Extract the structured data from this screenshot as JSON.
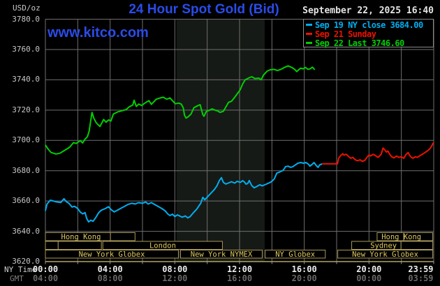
{
  "header": {
    "unit_label": "USD/oz",
    "title": "24 Hour Spot Gold (Bid)",
    "datetime": "September 22, 2025 16:40",
    "watermark": "www.kitco.com"
  },
  "legend": {
    "items": [
      {
        "label": "Sep 19 NY close 3684.00",
        "color": "#00aeef"
      },
      {
        "label": "Sep 21 Sunday",
        "color": "#ee1100"
      },
      {
        "label": "Sep 22 Last 3746.60",
        "color": "#00d000"
      }
    ]
  },
  "axes": {
    "y_tick_labels": [
      "3780.0",
      "3760.0",
      "3740.0",
      "3720.0",
      "3700.0",
      "3680.0",
      "3660.0",
      "3640.0",
      "3620.0"
    ],
    "x_rows": [
      {
        "row_label": "NY Time",
        "color": "#d0d0d0",
        "tick_color": "#ededed",
        "ticks": [
          {
            "text": "00:00",
            "hour": 0
          },
          {
            "text": "04:00",
            "hour": 4
          },
          {
            "text": "08:00",
            "hour": 8
          },
          {
            "text": "12:00",
            "hour": 12
          },
          {
            "text": "16:00",
            "hour": 16
          },
          {
            "text": "20:00",
            "hour": 20
          },
          {
            "text": "23:59",
            "hour": 23.2
          }
        ]
      },
      {
        "row_label": "GMT",
        "color": "#808080",
        "tick_color": "#686868",
        "ticks": [
          {
            "text": "04:00",
            "hour": 0
          },
          {
            "text": "08:00",
            "hour": 4
          },
          {
            "text": "12:00",
            "hour": 8
          },
          {
            "text": "16:00",
            "hour": 12
          },
          {
            "text": "20:00",
            "hour": 16
          },
          {
            "text": "00:00",
            "hour": 20
          },
          {
            "text": "03:59",
            "hour": 23.2
          }
        ]
      }
    ]
  },
  "sessions": {
    "box_border_color": "#a89858",
    "label_color": "#dcc862",
    "rows": [
      {
        "boxes": [
          [
            0,
            4.02
          ],
          [
            4.02,
            5.54
          ],
          [
            20.5,
            22.15
          ],
          [
            22.15,
            23.94
          ]
        ],
        "labels": [
          {
            "text": "Hong Kong",
            "center_hour": 2.2
          },
          {
            "text": "Hong Kong",
            "center_hour": 22.0
          }
        ]
      },
      {
        "boxes": [
          [
            0,
            0.79
          ],
          [
            0.79,
            3.46
          ],
          [
            3.55,
            10.94
          ],
          [
            18.93,
            21.98
          ],
          [
            21.98,
            23.94
          ]
        ],
        "labels": [
          {
            "text": "London",
            "center_hour": 7.25
          },
          {
            "text": "Sydney",
            "center_hour": 20.9
          }
        ]
      },
      {
        "boxes": [
          [
            0,
            8.22
          ],
          [
            8.35,
            13.4
          ],
          [
            13.58,
            17.3
          ],
          [
            18.07,
            23.94
          ]
        ],
        "labels": [
          {
            "text": "New York Globex",
            "center_hour": 4.1
          },
          {
            "text": "New York NYMEX",
            "center_hour": 10.88
          },
          {
            "text": "NY Globex",
            "center_hour": 15.44
          },
          {
            "text": "New York Globex",
            "center_hour": 21.0
          }
        ]
      }
    ]
  },
  "chart_data": {
    "type": "line",
    "title": "24 Hour Spot Gold (Bid)",
    "xlabel": "NY Time (hours 00:00-23:59)",
    "ylabel": "USD/oz",
    "ylim": [
      3620,
      3780
    ],
    "ytick_step": 20,
    "xlim_hours": [
      0,
      24
    ],
    "grid": true,
    "legend_position": "top-right",
    "background_color": "#000000",
    "gridline_color": "#6f6f6f",
    "bottom_axis_color": "#b0a468",
    "nymex_shaded_band_hours": [
      8.1,
      13.55
    ],
    "shaded_band_color": "#161a16",
    "series": [
      {
        "name": "Sep 19 NY close 3684.00",
        "color": "#00aeef",
        "close": 3684.0,
        "points": [
          [
            0.0,
            3653.5
          ],
          [
            0.1,
            3658
          ],
          [
            0.3,
            3660.5
          ],
          [
            0.65,
            3659.5
          ],
          [
            0.95,
            3659
          ],
          [
            1.15,
            3661.5
          ],
          [
            1.3,
            3659.5
          ],
          [
            1.45,
            3658.5
          ],
          [
            1.65,
            3656
          ],
          [
            1.8,
            3656.5
          ],
          [
            2.0,
            3655
          ],
          [
            2.15,
            3652.8
          ],
          [
            2.3,
            3651.5
          ],
          [
            2.45,
            3652.3
          ],
          [
            2.55,
            3648.5
          ],
          [
            2.67,
            3646.2
          ],
          [
            2.8,
            3647.3
          ],
          [
            2.95,
            3646.6
          ],
          [
            3.1,
            3648.8
          ],
          [
            3.3,
            3652.3
          ],
          [
            3.45,
            3653.9
          ],
          [
            3.7,
            3655
          ],
          [
            3.9,
            3656.2
          ],
          [
            4.05,
            3654.4
          ],
          [
            4.25,
            3652.8
          ],
          [
            4.45,
            3653.9
          ],
          [
            4.7,
            3655.4
          ],
          [
            4.9,
            3656.5
          ],
          [
            5.1,
            3657.7
          ],
          [
            5.35,
            3658.5
          ],
          [
            5.55,
            3658
          ],
          [
            5.75,
            3658.9
          ],
          [
            6.0,
            3658.5
          ],
          [
            6.2,
            3659.3
          ],
          [
            6.35,
            3658
          ],
          [
            6.55,
            3658.9
          ],
          [
            6.8,
            3657.4
          ],
          [
            7.0,
            3656.2
          ],
          [
            7.2,
            3655
          ],
          [
            7.4,
            3653.5
          ],
          [
            7.55,
            3651.6
          ],
          [
            7.7,
            3650.4
          ],
          [
            7.85,
            3651.3
          ],
          [
            8.0,
            3649.7
          ],
          [
            8.15,
            3650.8
          ],
          [
            8.3,
            3650.1
          ],
          [
            8.45,
            3649.3
          ],
          [
            8.65,
            3650.1
          ],
          [
            8.8,
            3648.8
          ],
          [
            8.95,
            3649.7
          ],
          [
            9.15,
            3652.3
          ],
          [
            9.35,
            3654.6
          ],
          [
            9.6,
            3658.5
          ],
          [
            9.73,
            3662.4
          ],
          [
            9.85,
            3660.8
          ],
          [
            10.05,
            3663.1
          ],
          [
            10.25,
            3665.4
          ],
          [
            10.45,
            3667.7
          ],
          [
            10.6,
            3670
          ],
          [
            10.75,
            3673.4
          ],
          [
            10.88,
            3675.4
          ],
          [
            11.0,
            3672.3
          ],
          [
            11.15,
            3671.2
          ],
          [
            11.3,
            3671.8
          ],
          [
            11.5,
            3672.7
          ],
          [
            11.7,
            3671.8
          ],
          [
            11.85,
            3673
          ],
          [
            12.05,
            3672.3
          ],
          [
            12.2,
            3673.4
          ],
          [
            12.3,
            3672.6
          ],
          [
            12.4,
            3671.1
          ],
          [
            12.5,
            3671.5
          ],
          [
            12.6,
            3673.5
          ],
          [
            12.75,
            3670.2
          ],
          [
            12.9,
            3668.7
          ],
          [
            13.05,
            3669.5
          ],
          [
            13.25,
            3670.7
          ],
          [
            13.4,
            3670
          ],
          [
            13.65,
            3671.1
          ],
          [
            13.9,
            3672.3
          ],
          [
            14.0,
            3673
          ],
          [
            14.15,
            3674.6
          ],
          [
            14.3,
            3678.4
          ],
          [
            14.5,
            3679.2
          ],
          [
            14.7,
            3680.3
          ],
          [
            14.85,
            3682.7
          ],
          [
            15.0,
            3683
          ],
          [
            15.15,
            3682.2
          ],
          [
            15.3,
            3682.7
          ],
          [
            15.45,
            3683.8
          ],
          [
            15.6,
            3684.9
          ],
          [
            15.8,
            3685.4
          ],
          [
            15.95,
            3684.9
          ],
          [
            16.1,
            3685.4
          ],
          [
            16.25,
            3684.3
          ],
          [
            16.35,
            3683
          ],
          [
            16.5,
            3684.3
          ],
          [
            16.6,
            3685.4
          ],
          [
            16.75,
            3683.3
          ],
          [
            16.85,
            3682.2
          ],
          [
            16.95,
            3683.8
          ],
          [
            17.1,
            3684.5
          ]
        ]
      },
      {
        "name": "Sep 21 Sunday",
        "color": "#ee1100",
        "points": [
          [
            17.1,
            3684.5
          ],
          [
            18.05,
            3684.5
          ],
          [
            18.12,
            3688.2
          ],
          [
            18.25,
            3690
          ],
          [
            18.38,
            3691.2
          ],
          [
            18.45,
            3690.3
          ],
          [
            18.6,
            3690.8
          ],
          [
            18.75,
            3689.2
          ],
          [
            18.88,
            3688.2
          ],
          [
            19.0,
            3688.8
          ],
          [
            19.15,
            3687.2
          ],
          [
            19.3,
            3686.6
          ],
          [
            19.45,
            3687.2
          ],
          [
            19.6,
            3686.1
          ],
          [
            19.75,
            3686.9
          ],
          [
            19.9,
            3689.2
          ],
          [
            20.0,
            3690.3
          ],
          [
            20.1,
            3689.7
          ],
          [
            20.25,
            3690.8
          ],
          [
            20.4,
            3690
          ],
          [
            20.55,
            3688.8
          ],
          [
            20.65,
            3689.7
          ],
          [
            20.75,
            3690.8
          ],
          [
            20.87,
            3694.9
          ],
          [
            20.97,
            3693.8
          ],
          [
            21.08,
            3692.3
          ],
          [
            21.17,
            3693
          ],
          [
            21.28,
            3690.8
          ],
          [
            21.4,
            3689.2
          ],
          [
            21.55,
            3688.4
          ],
          [
            21.7,
            3689.7
          ],
          [
            21.85,
            3688.8
          ],
          [
            22.0,
            3689.2
          ],
          [
            22.15,
            3688.2
          ],
          [
            22.3,
            3690.8
          ],
          [
            22.42,
            3691.9
          ],
          [
            22.52,
            3690
          ],
          [
            22.62,
            3688.8
          ],
          [
            22.72,
            3688.2
          ],
          [
            22.87,
            3689.2
          ],
          [
            23.0,
            3688.8
          ],
          [
            23.15,
            3690
          ],
          [
            23.3,
            3690.8
          ],
          [
            23.45,
            3691.9
          ],
          [
            23.6,
            3693
          ],
          [
            23.75,
            3694.3
          ],
          [
            23.87,
            3696.1
          ],
          [
            23.95,
            3698
          ],
          [
            24.0,
            3698.4
          ]
        ]
      },
      {
        "name": "Sep 22 Last 3746.60",
        "color": "#00d000",
        "last": 3746.6,
        "points": [
          [
            0.0,
            3697
          ],
          [
            0.15,
            3694.5
          ],
          [
            0.35,
            3692
          ],
          [
            0.65,
            3691
          ],
          [
            0.9,
            3691.5
          ],
          [
            1.2,
            3693.5
          ],
          [
            1.5,
            3695.5
          ],
          [
            1.73,
            3698.5
          ],
          [
            1.9,
            3698
          ],
          [
            2.16,
            3699.8
          ],
          [
            2.3,
            3698.3
          ],
          [
            2.45,
            3700.8
          ],
          [
            2.6,
            3702.5
          ],
          [
            2.7,
            3706
          ],
          [
            2.88,
            3718.5
          ],
          [
            3.0,
            3714.5
          ],
          [
            3.15,
            3711.5
          ],
          [
            3.37,
            3709.2
          ],
          [
            3.6,
            3713.8
          ],
          [
            3.75,
            3712
          ],
          [
            3.9,
            3713.5
          ],
          [
            4.05,
            3712.8
          ],
          [
            4.2,
            3717.4
          ],
          [
            4.45,
            3718.7
          ],
          [
            4.7,
            3719.5
          ],
          [
            5.0,
            3720.4
          ],
          [
            5.2,
            3722.3
          ],
          [
            5.4,
            3723.3
          ],
          [
            5.48,
            3726.5
          ],
          [
            5.62,
            3722.4
          ],
          [
            5.77,
            3724
          ],
          [
            5.95,
            3723
          ],
          [
            6.2,
            3725
          ],
          [
            6.4,
            3726.2
          ],
          [
            6.55,
            3723.8
          ],
          [
            6.7,
            3725.5
          ],
          [
            6.85,
            3727.2
          ],
          [
            7.1,
            3728
          ],
          [
            7.28,
            3728.5
          ],
          [
            7.5,
            3727.2
          ],
          [
            7.7,
            3728
          ],
          [
            7.85,
            3726.2
          ],
          [
            8.03,
            3724.2
          ],
          [
            8.25,
            3724.6
          ],
          [
            8.4,
            3723.9
          ],
          [
            8.52,
            3721.5
          ],
          [
            8.6,
            3716.5
          ],
          [
            8.7,
            3714.7
          ],
          [
            8.85,
            3715.8
          ],
          [
            9.0,
            3717.4
          ],
          [
            9.18,
            3721.6
          ],
          [
            9.4,
            3722.8
          ],
          [
            9.56,
            3723.6
          ],
          [
            9.73,
            3717
          ],
          [
            9.8,
            3715.9
          ],
          [
            9.95,
            3719.2
          ],
          [
            10.15,
            3719.9
          ],
          [
            10.3,
            3720.8
          ],
          [
            10.5,
            3719.9
          ],
          [
            10.65,
            3719.4
          ],
          [
            10.8,
            3718.5
          ],
          [
            11.0,
            3719.2
          ],
          [
            11.15,
            3722
          ],
          [
            11.32,
            3725.1
          ],
          [
            11.5,
            3725.8
          ],
          [
            11.68,
            3728.2
          ],
          [
            11.86,
            3730.8
          ],
          [
            12.04,
            3733.4
          ],
          [
            12.2,
            3737.4
          ],
          [
            12.35,
            3740
          ],
          [
            12.55,
            3741.1
          ],
          [
            12.75,
            3742
          ],
          [
            12.95,
            3740.8
          ],
          [
            13.2,
            3741.1
          ],
          [
            13.33,
            3740
          ],
          [
            13.48,
            3743.1
          ],
          [
            13.7,
            3745.7
          ],
          [
            13.9,
            3746.6
          ],
          [
            14.13,
            3746.9
          ],
          [
            14.34,
            3746.1
          ],
          [
            14.56,
            3746.9
          ],
          [
            14.78,
            3748.2
          ],
          [
            15.0,
            3749.2
          ],
          [
            15.15,
            3748.5
          ],
          [
            15.3,
            3747.7
          ],
          [
            15.43,
            3746.6
          ],
          [
            15.53,
            3745.4
          ],
          [
            15.65,
            3746.6
          ],
          [
            15.78,
            3747.7
          ],
          [
            15.93,
            3747.2
          ],
          [
            16.07,
            3748.2
          ],
          [
            16.22,
            3746.9
          ],
          [
            16.36,
            3747.2
          ],
          [
            16.5,
            3748.3
          ],
          [
            16.65,
            3746.6
          ]
        ]
      }
    ]
  }
}
